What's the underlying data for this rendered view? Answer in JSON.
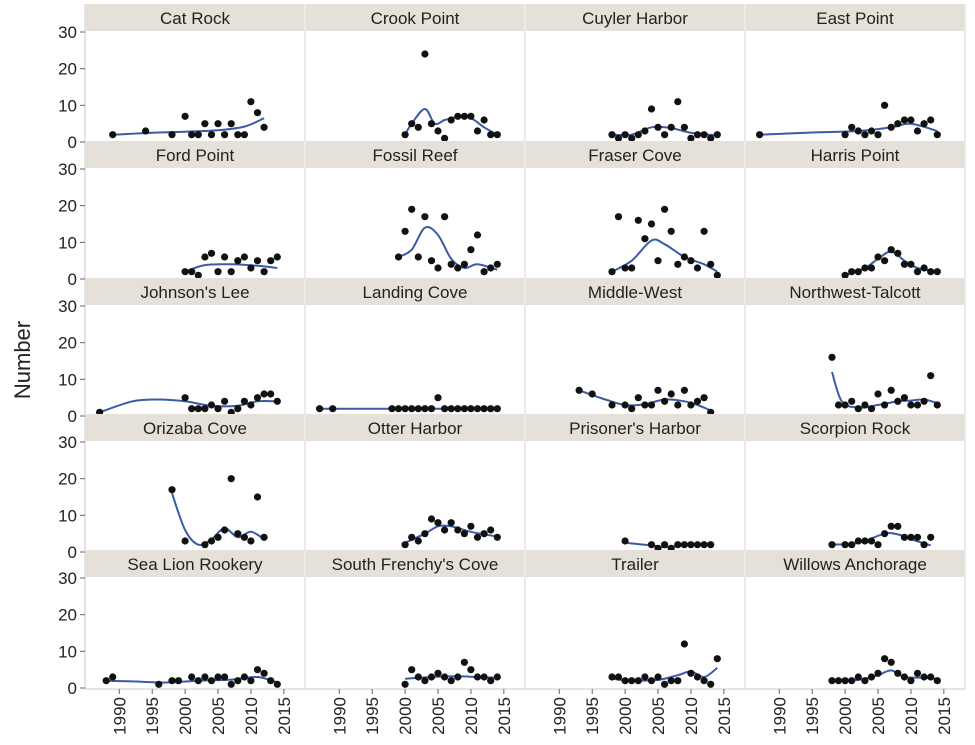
{
  "chart_data": {
    "type": "scatter",
    "layout": "faceted-grid",
    "ylabel": "Number",
    "xlabel": "",
    "x_ticks": [
      1990,
      1995,
      2000,
      2005,
      2010,
      2015
    ],
    "y_ticks": [
      0,
      10,
      20,
      30
    ],
    "xlim": [
      1986,
      2017
    ],
    "ylim": [
      0,
      30
    ],
    "point_color": "#111111",
    "trend_color": "#3b5ba5",
    "strip_color": "#e6e1d8",
    "panels": [
      {
        "name": "Cat Rock",
        "x": [
          1989,
          1994,
          1998,
          2000,
          2001,
          2002,
          2003,
          2004,
          2005,
          2006,
          2007,
          2008,
          2009,
          2010,
          2011,
          2012
        ],
        "y": [
          2,
          3,
          2,
          7,
          2,
          2,
          5,
          2,
          5,
          2,
          5,
          2,
          2,
          11,
          8,
          4
        ],
        "trend": [
          [
            1989,
            2
          ],
          [
            1995,
            2.5
          ],
          [
            2000,
            2.8
          ],
          [
            2005,
            3.2
          ],
          [
            2009,
            4.2
          ],
          [
            2012,
            6.5
          ]
        ]
      },
      {
        "name": "Crook Point",
        "x": [
          2000,
          2001,
          2002,
          2003,
          2004,
          2005,
          2006,
          2007,
          2008,
          2009,
          2010,
          2011,
          2012,
          2013,
          2014
        ],
        "y": [
          2,
          5,
          4,
          24,
          5,
          3,
          1,
          6,
          7,
          7,
          7,
          3,
          6,
          2,
          2
        ],
        "trend": [
          [
            2000,
            2
          ],
          [
            2001,
            5
          ],
          [
            2003,
            9
          ],
          [
            2004.5,
            5
          ],
          [
            2006,
            6
          ],
          [
            2008,
            6.8
          ],
          [
            2010,
            6.5
          ],
          [
            2012,
            4
          ],
          [
            2014,
            2
          ]
        ]
      },
      {
        "name": "Cuyler Harbor",
        "x": [
          1998,
          1999,
          2000,
          2001,
          2002,
          2003,
          2004,
          2005,
          2006,
          2007,
          2008,
          2009,
          2010,
          2011,
          2012,
          2013,
          2014
        ],
        "y": [
          2,
          1,
          2,
          1,
          2,
          3,
          9,
          4,
          2,
          4,
          11,
          4,
          1,
          2,
          2,
          1,
          2
        ],
        "trend": [
          [
            1998,
            2
          ],
          [
            2001,
            2
          ],
          [
            2004,
            4
          ],
          [
            2007,
            3.8
          ],
          [
            2010,
            2.5
          ],
          [
            2014,
            1.8
          ]
        ]
      },
      {
        "name": "East Point",
        "x": [
          1987,
          2000,
          2001,
          2002,
          2003,
          2004,
          2005,
          2006,
          2007,
          2008,
          2009,
          2010,
          2011,
          2012,
          2013,
          2014
        ],
        "y": [
          2,
          2,
          4,
          3,
          2,
          3,
          2,
          10,
          4,
          5,
          6,
          6,
          3,
          5,
          6,
          2
        ],
        "trend": [
          [
            1987,
            2
          ],
          [
            1995,
            2.6
          ],
          [
            2002,
            3
          ],
          [
            2007,
            4
          ],
          [
            2010,
            5
          ],
          [
            2014,
            3
          ]
        ]
      },
      {
        "name": "Ford Point",
        "x": [
          2000,
          2001,
          2002,
          2003,
          2004,
          2005,
          2006,
          2007,
          2008,
          2009,
          2010,
          2011,
          2012,
          2013,
          2014
        ],
        "y": [
          2,
          2,
          1,
          6,
          7,
          2,
          6,
          2,
          5,
          6,
          3,
          5,
          2,
          5,
          6
        ],
        "trend": [
          [
            2000,
            2
          ],
          [
            2003,
            3.8
          ],
          [
            2007,
            4
          ],
          [
            2011,
            3.6
          ],
          [
            2014,
            3
          ]
        ]
      },
      {
        "name": "Fossil Reef",
        "x": [
          1999,
          2000,
          2001,
          2002,
          2003,
          2004,
          2005,
          2006,
          2007,
          2008,
          2009,
          2010,
          2011,
          2012,
          2013,
          2014
        ],
        "y": [
          6,
          13,
          19,
          6,
          17,
          5,
          3,
          17,
          4,
          3,
          4,
          8,
          12,
          2,
          3,
          4
        ],
        "trend": [
          [
            1999,
            6
          ],
          [
            2001,
            8
          ],
          [
            2003,
            14
          ],
          [
            2005,
            12
          ],
          [
            2007,
            5.5
          ],
          [
            2009,
            3
          ],
          [
            2011,
            4
          ],
          [
            2014,
            2.5
          ]
        ]
      },
      {
        "name": "Fraser Cove",
        "x": [
          1998,
          1999,
          2000,
          2001,
          2002,
          2003,
          2004,
          2005,
          2006,
          2007,
          2008,
          2009,
          2010,
          2011,
          2012,
          2013,
          2014
        ],
        "y": [
          2,
          17,
          3,
          3,
          16,
          11,
          15,
          5,
          19,
          13,
          4,
          6,
          5,
          3,
          13,
          4,
          1
        ],
        "trend": [
          [
            1998,
            2
          ],
          [
            2001,
            5
          ],
          [
            2004,
            10.5
          ],
          [
            2006,
            9.5
          ],
          [
            2009,
            6
          ],
          [
            2012,
            4
          ],
          [
            2014,
            2
          ]
        ]
      },
      {
        "name": "Harris Point",
        "x": [
          2000,
          2001,
          2002,
          2003,
          2004,
          2005,
          2006,
          2007,
          2008,
          2009,
          2010,
          2011,
          2012,
          2013,
          2014
        ],
        "y": [
          1,
          2,
          2,
          3,
          3,
          6,
          5,
          8,
          7,
          4,
          4,
          2,
          3,
          2,
          2
        ],
        "trend": [
          [
            2000,
            1
          ],
          [
            2003,
            3
          ],
          [
            2005,
            5.5
          ],
          [
            2007,
            7.5
          ],
          [
            2009,
            5
          ],
          [
            2011,
            3
          ],
          [
            2014,
            2
          ]
        ]
      },
      {
        "name": "Johnson's Lee",
        "x": [
          1987,
          2000,
          2001,
          2002,
          2003,
          2004,
          2005,
          2006,
          2007,
          2008,
          2009,
          2010,
          2011,
          2012,
          2013,
          2014
        ],
        "y": [
          1,
          5,
          2,
          2,
          2,
          3,
          2,
          4,
          1,
          2,
          4,
          3,
          5,
          6,
          6,
          4
        ],
        "trend": [
          [
            1987,
            1
          ],
          [
            1992,
            4
          ],
          [
            1996,
            4.5
          ],
          [
            2000,
            4
          ],
          [
            2004,
            2.8
          ],
          [
            2008,
            2.8
          ],
          [
            2011,
            4
          ],
          [
            2014,
            4
          ]
        ]
      },
      {
        "name": "Landing Cove",
        "x": [
          1987,
          1989,
          1998,
          1999,
          2000,
          2001,
          2002,
          2003,
          2004,
          2005,
          2006,
          2007,
          2008,
          2009,
          2010,
          2011,
          2012,
          2013,
          2014
        ],
        "y": [
          2,
          2,
          2,
          2,
          2,
          2,
          2,
          2,
          2,
          5,
          2,
          2,
          2,
          2,
          2,
          2,
          2,
          2,
          2
        ],
        "trend": [
          [
            1987,
            2
          ],
          [
            2000,
            2
          ],
          [
            2014,
            2
          ]
        ]
      },
      {
        "name": "Middle-West",
        "x": [
          1993,
          1995,
          1998,
          2000,
          2001,
          2002,
          2003,
          2004,
          2005,
          2006,
          2007,
          2008,
          2009,
          2010,
          2011,
          2012,
          2013
        ],
        "y": [
          7,
          6,
          3,
          3,
          2,
          5,
          3,
          3,
          7,
          4,
          6,
          3,
          7,
          3,
          4,
          5,
          1
        ],
        "trend": [
          [
            1993,
            7
          ],
          [
            1997,
            4.5
          ],
          [
            2000,
            3
          ],
          [
            2003,
            3.2
          ],
          [
            2006,
            4.5
          ],
          [
            2009,
            4
          ],
          [
            2011,
            3
          ],
          [
            2013,
            1.5
          ]
        ]
      },
      {
        "name": "Northwest-Talcott",
        "x": [
          1998,
          1999,
          2000,
          2001,
          2002,
          2003,
          2004,
          2005,
          2006,
          2007,
          2008,
          2009,
          2010,
          2011,
          2012,
          2013,
          2014
        ],
        "y": [
          16,
          3,
          3,
          4,
          2,
          3,
          2,
          6,
          3,
          7,
          4,
          5,
          3,
          3,
          4,
          11,
          3
        ],
        "trend": [
          [
            1998,
            12
          ],
          [
            1999.5,
            4
          ],
          [
            2002,
            2.3
          ],
          [
            2005,
            3
          ],
          [
            2008,
            4
          ],
          [
            2010,
            4.2
          ],
          [
            2012,
            4.5
          ],
          [
            2014,
            3.5
          ]
        ]
      },
      {
        "name": "Orizaba Cove",
        "x": [
          1998,
          2000,
          2003,
          2004,
          2005,
          2006,
          2007,
          2008,
          2009,
          2010,
          2011,
          2012
        ],
        "y": [
          17,
          3,
          2,
          3,
          4,
          6,
          20,
          5,
          4,
          3,
          15,
          4
        ],
        "trend": [
          [
            1998,
            16
          ],
          [
            2000,
            6
          ],
          [
            2002,
            2
          ],
          [
            2004,
            3.5
          ],
          [
            2006,
            6.5
          ],
          [
            2008,
            4
          ],
          [
            2010,
            5.5
          ],
          [
            2012,
            3.5
          ]
        ]
      },
      {
        "name": "Otter Harbor",
        "x": [
          2000,
          2001,
          2002,
          2003,
          2004,
          2005,
          2006,
          2007,
          2008,
          2009,
          2010,
          2011,
          2012,
          2013,
          2014
        ],
        "y": [
          2,
          4,
          3,
          5,
          9,
          8,
          6,
          8,
          6,
          5,
          7,
          4,
          5,
          6,
          4
        ],
        "trend": [
          [
            2000,
            2.5
          ],
          [
            2003,
            5
          ],
          [
            2005,
            7
          ],
          [
            2007,
            7
          ],
          [
            2010,
            5.5
          ],
          [
            2014,
            4.2
          ]
        ]
      },
      {
        "name": "Prisoner's Harbor",
        "x": [
          2000,
          2004,
          2005,
          2006,
          2007,
          2008,
          2009,
          2010,
          2011,
          2012,
          2013
        ],
        "y": [
          3,
          2,
          1,
          2,
          1,
          2,
          2,
          2,
          2,
          2,
          2
        ],
        "trend": [
          [
            2000,
            2.5
          ],
          [
            2004,
            1.8
          ],
          [
            2006,
            1.3
          ],
          [
            2009,
            1.8
          ],
          [
            2013,
            2
          ]
        ]
      },
      {
        "name": "Scorpion Rock",
        "x": [
          1998,
          2000,
          2001,
          2002,
          2003,
          2004,
          2005,
          2006,
          2007,
          2008,
          2009,
          2010,
          2011,
          2012,
          2013
        ],
        "y": [
          2,
          2,
          2,
          3,
          3,
          3,
          2,
          5,
          7,
          7,
          4,
          4,
          4,
          2,
          4
        ],
        "trend": [
          [
            1998,
            2
          ],
          [
            2002,
            2.5
          ],
          [
            2006,
            5
          ],
          [
            2008,
            4.8
          ],
          [
            2010,
            3.5
          ],
          [
            2013,
            1.8
          ]
        ]
      },
      {
        "name": "Sea Lion Rookery",
        "x": [
          1988,
          1989,
          1996,
          1998,
          1999,
          2001,
          2002,
          2003,
          2004,
          2005,
          2006,
          2007,
          2008,
          2009,
          2010,
          2011,
          2012,
          2013,
          2014
        ],
        "y": [
          2,
          3,
          1,
          2,
          2,
          3,
          2,
          3,
          2,
          3,
          3,
          1,
          2,
          3,
          2,
          5,
          4,
          2,
          1
        ],
        "trend": [
          [
            1988,
            2
          ],
          [
            1992,
            1.8
          ],
          [
            1997,
            1.5
          ],
          [
            2002,
            2
          ],
          [
            2007,
            2.3
          ],
          [
            2011,
            3
          ],
          [
            2014,
            1.5
          ]
        ]
      },
      {
        "name": "South Frenchy's Cove",
        "x": [
          2000,
          2001,
          2002,
          2003,
          2004,
          2005,
          2006,
          2007,
          2008,
          2009,
          2010,
          2011,
          2012,
          2013,
          2014
        ],
        "y": [
          1,
          5,
          3,
          2,
          3,
          4,
          3,
          2,
          3,
          7,
          5,
          3,
          3,
          2,
          3
        ],
        "trend": [
          [
            2000,
            2.5
          ],
          [
            2004,
            3
          ],
          [
            2008,
            3.2
          ],
          [
            2011,
            3
          ],
          [
            2014,
            2.8
          ]
        ]
      },
      {
        "name": "Trailer",
        "x": [
          1998,
          1999,
          2000,
          2001,
          2002,
          2003,
          2004,
          2005,
          2006,
          2007,
          2008,
          2009,
          2010,
          2011,
          2012,
          2013,
          2014
        ],
        "y": [
          3,
          3,
          2,
          2,
          2,
          3,
          2,
          3,
          1,
          2,
          2,
          12,
          4,
          3,
          2,
          1,
          8
        ],
        "trend": [
          [
            1998,
            2.5
          ],
          [
            2001,
            2
          ],
          [
            2005,
            2.2
          ],
          [
            2008,
            3.5
          ],
          [
            2010,
            4.5
          ],
          [
            2012,
            3
          ],
          [
            2014,
            5.5
          ]
        ]
      },
      {
        "name": "Willows Anchorage",
        "x": [
          1998,
          1999,
          2000,
          2001,
          2002,
          2003,
          2004,
          2005,
          2006,
          2007,
          2008,
          2009,
          2010,
          2011,
          2012,
          2013,
          2014
        ],
        "y": [
          2,
          2,
          2,
          2,
          3,
          2,
          3,
          4,
          8,
          7,
          4,
          3,
          2,
          4,
          3,
          3,
          2
        ],
        "trend": [
          [
            1998,
            2
          ],
          [
            2002,
            2.2
          ],
          [
            2005,
            3.5
          ],
          [
            2007,
            4.8
          ],
          [
            2009,
            3
          ],
          [
            2012,
            2.8
          ],
          [
            2014,
            2.5
          ]
        ]
      }
    ]
  }
}
